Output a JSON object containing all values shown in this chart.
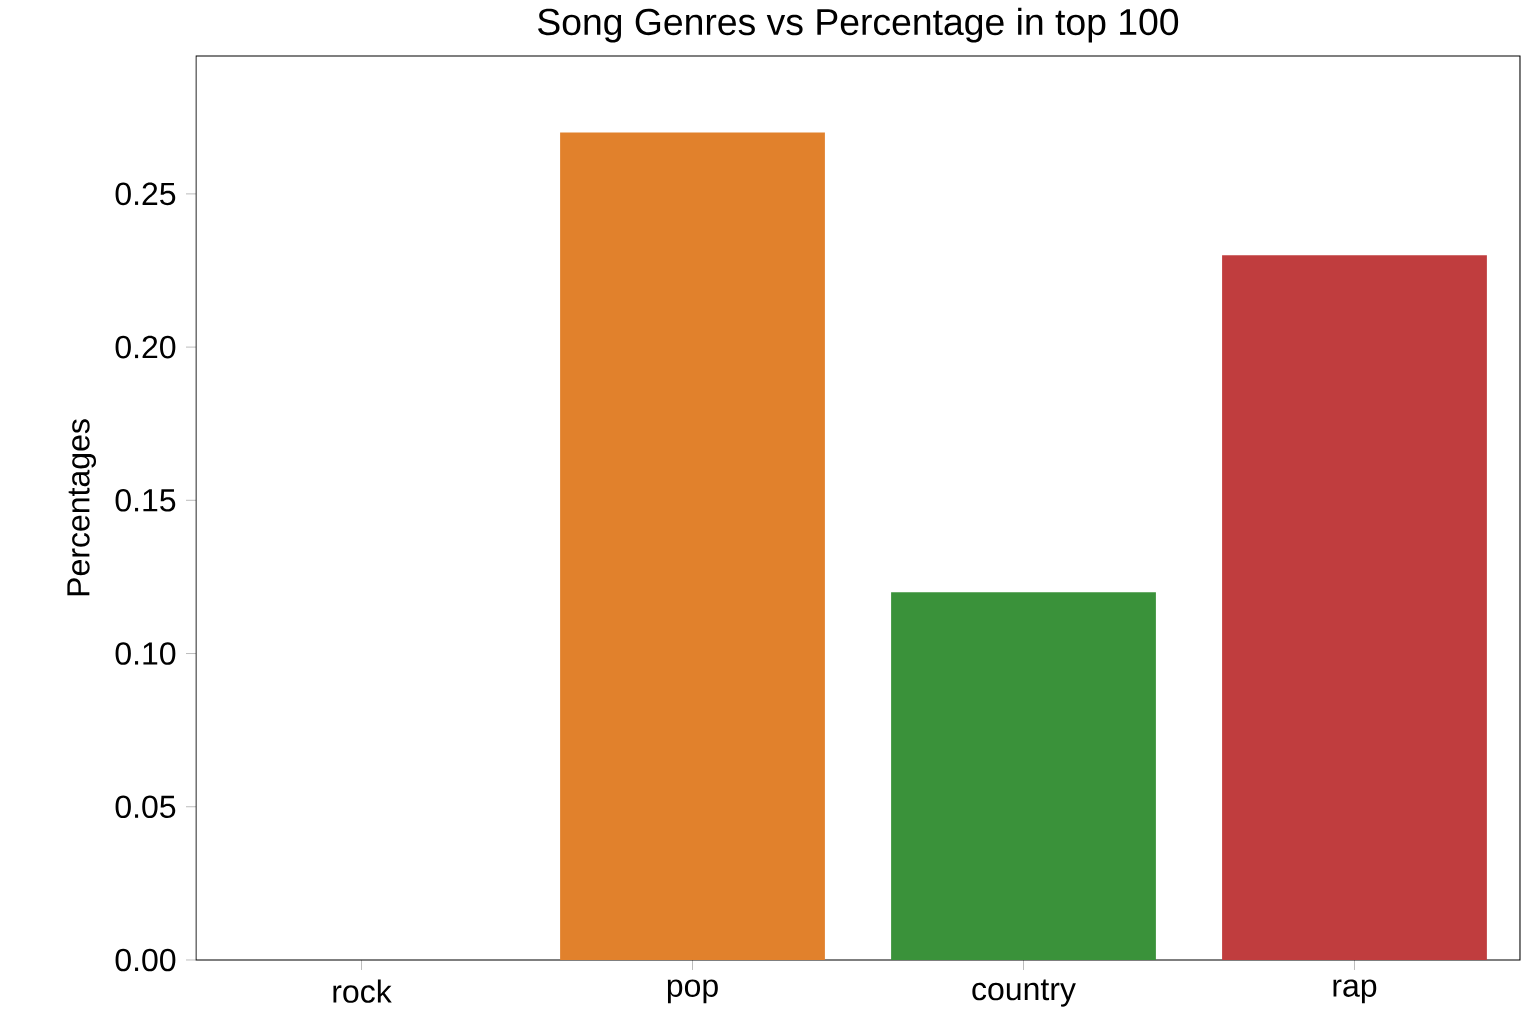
{
  "chart_data": {
    "type": "bar",
    "title": "Song Genres vs Percentage in top 100",
    "ylabel": "Percentages",
    "categories": [
      "rock",
      "pop",
      "country",
      "rap"
    ],
    "values": [
      0,
      0.27,
      0.12,
      0.23
    ],
    "colors": [
      "#3274a1",
      "#e1812c",
      "#3a923a",
      "#c03d3e"
    ],
    "ylim": [
      0,
      0.295
    ],
    "yticks": [
      {
        "value": 0,
        "label": "0.00"
      },
      {
        "value": 0.05,
        "label": "0.05"
      },
      {
        "value": 0.1,
        "label": "0.10"
      },
      {
        "value": 0.15,
        "label": "0.15"
      },
      {
        "value": 0.2,
        "label": "0.20"
      },
      {
        "value": 0.25,
        "label": "0.25"
      }
    ],
    "grid": false
  }
}
